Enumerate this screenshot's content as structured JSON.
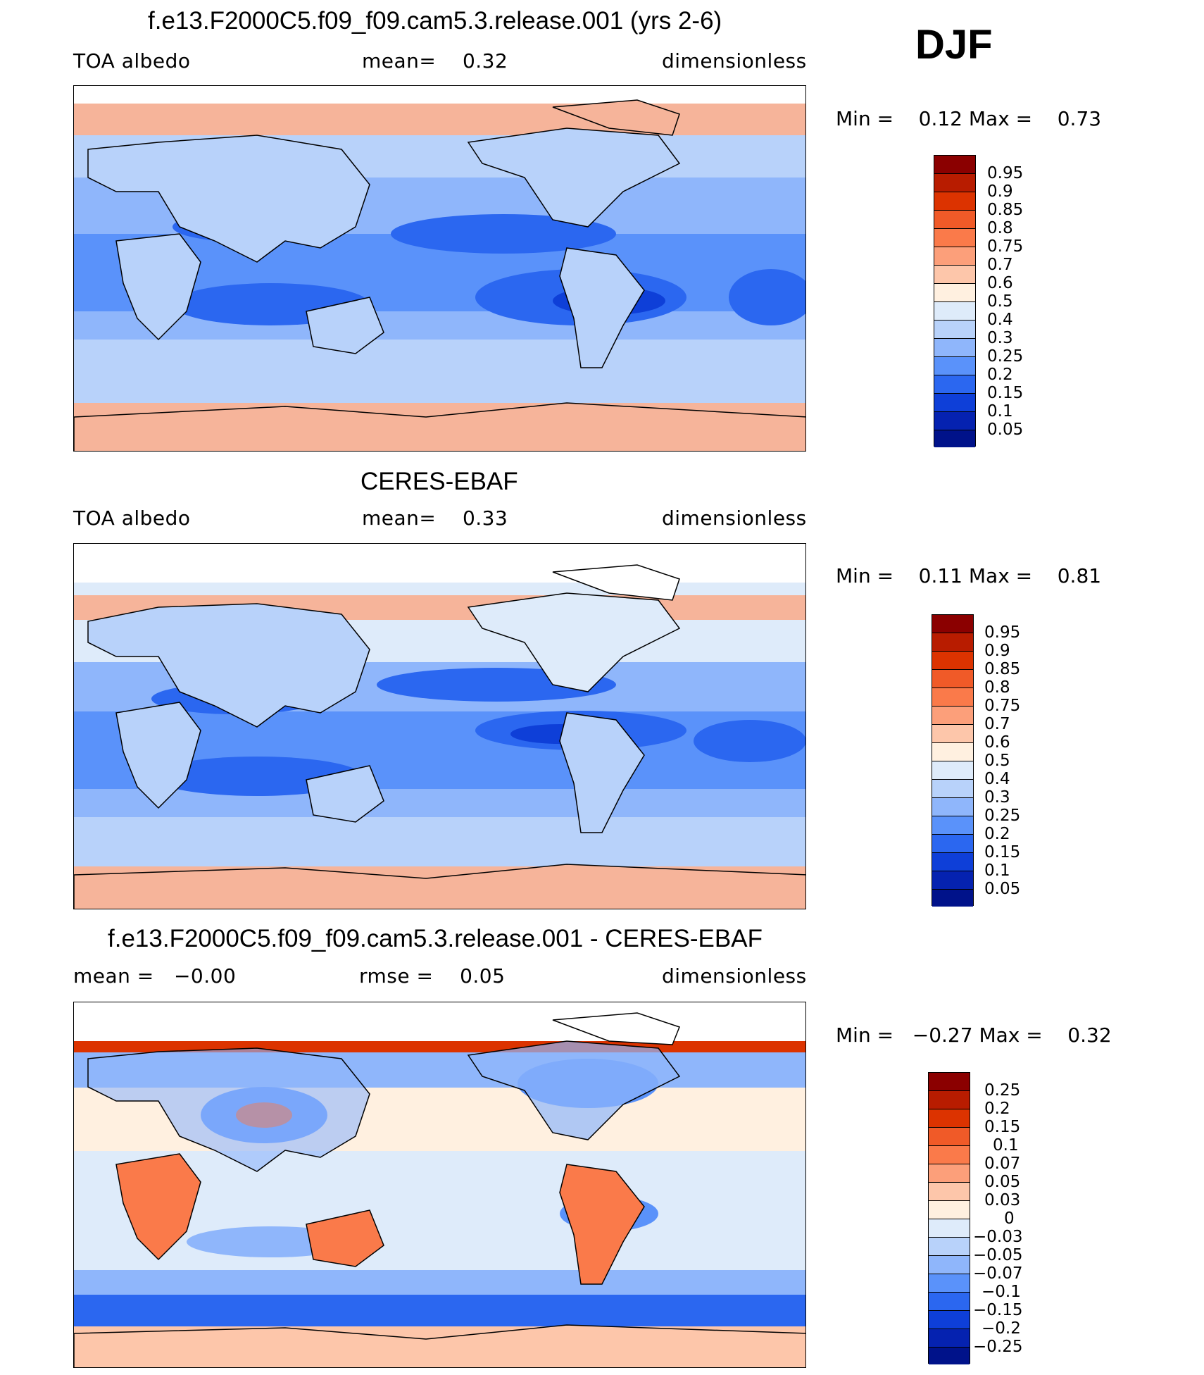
{
  "season": "DJF",
  "panels": [
    {
      "title": "f.e13.F2000C5.f09_f09.cam5.3.release.001 (yrs 2-6)",
      "left_label": "TOA albedo",
      "center_label": "mean=    0.32",
      "right_label": "dimensionless",
      "minmax": "Min =    0.12 Max =    0.73",
      "colorbar_levels": [
        "0.95",
        "0.9",
        "0.85",
        "0.8",
        "0.75",
        "0.7",
        "0.6",
        "0.5",
        "0.4",
        "0.3",
        "0.25",
        "0.2",
        "0.15",
        "0.1",
        "0.05"
      ],
      "colorbar_colors": [
        "#8b0000",
        "#b81c00",
        "#dc3300",
        "#f05a28",
        "#fa7a4a",
        "#fc9f7a",
        "#fdc6aa",
        "#fff0e0",
        "#deebfa",
        "#b8d2fa",
        "#8fb6fb",
        "#5a92fa",
        "#2b67f0",
        "#0e3fd8",
        "#0522b0",
        "#00128a"
      ],
      "data_range": [
        0.12,
        0.73
      ],
      "mean": 0.32
    },
    {
      "title": "CERES-EBAF",
      "left_label": "TOA albedo",
      "center_label": "mean=    0.33",
      "right_label": "dimensionless",
      "minmax": "Min =    0.11 Max =    0.81",
      "colorbar_levels": [
        "0.95",
        "0.9",
        "0.85",
        "0.8",
        "0.75",
        "0.7",
        "0.6",
        "0.5",
        "0.4",
        "0.3",
        "0.25",
        "0.2",
        "0.15",
        "0.1",
        "0.05"
      ],
      "colorbar_colors": [
        "#8b0000",
        "#b81c00",
        "#dc3300",
        "#f05a28",
        "#fa7a4a",
        "#fc9f7a",
        "#fdc6aa",
        "#fff0e0",
        "#deebfa",
        "#b8d2fa",
        "#8fb6fb",
        "#5a92fa",
        "#2b67f0",
        "#0e3fd8",
        "#0522b0",
        "#00128a"
      ],
      "data_range": [
        0.11,
        0.81
      ],
      "mean": 0.33
    },
    {
      "title": "f.e13.F2000C5.f09_f09.cam5.3.release.001 - CERES-EBAF",
      "left_label": "mean =   −0.00",
      "center_label": "rmse =    0.05",
      "right_label": "dimensionless",
      "minmax": "Min =   −0.27 Max =    0.32",
      "colorbar_levels": [
        "0.25",
        "0.2",
        "0.15",
        "0.1",
        "0.07",
        "0.05",
        "0.03",
        "0",
        "−0.03",
        "−0.05",
        "−0.07",
        "−0.1",
        "−0.15",
        "−0.2",
        "−0.25"
      ],
      "colorbar_colors": [
        "#8b0000",
        "#b81c00",
        "#dc3300",
        "#f05a28",
        "#fa7a4a",
        "#fc9f7a",
        "#fdc6aa",
        "#fff0e0",
        "#deebfa",
        "#b8d2fa",
        "#8fb6fb",
        "#5a92fa",
        "#2b67f0",
        "#0e3fd8",
        "#0522b0",
        "#00128a"
      ],
      "data_range": [
        -0.27,
        0.32
      ],
      "mean": -0.0,
      "rmse": 0.05
    }
  ],
  "map_fill_colors": {
    "polar_high": "#f6b49a",
    "midlat": "#b8d2fa",
    "subtropic_low": "#5a92fa",
    "deep_low": "#2b67f0",
    "diff_positive": "#fa7a4a",
    "diff_negative": "#5a92fa",
    "diff_neutral": "#deebfa",
    "coast": "#000000"
  }
}
